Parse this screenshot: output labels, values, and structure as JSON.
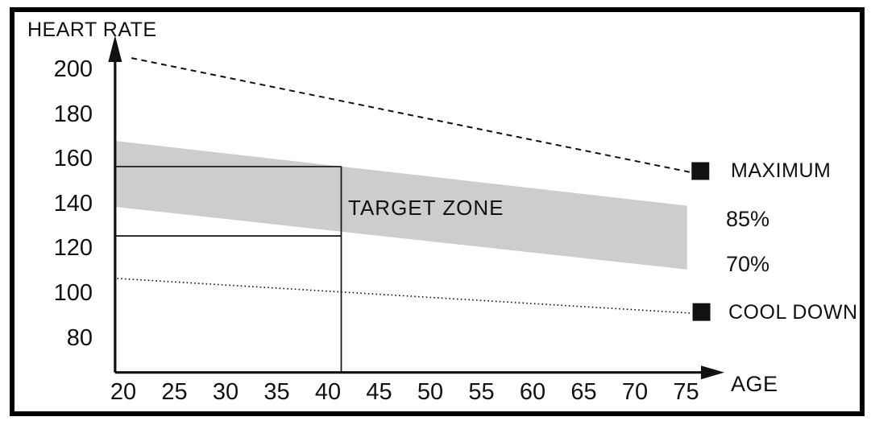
{
  "chart_data": {
    "type": "area",
    "title": "HEART RATE",
    "xlabel": "AGE",
    "ylabel": "HEART RATE",
    "x_ticks": [
      20,
      25,
      30,
      35,
      40,
      45,
      50,
      55,
      60,
      65,
      70,
      75
    ],
    "y_ticks": [
      200,
      180,
      160,
      140,
      120,
      100,
      80
    ],
    "xlim": [
      19.2,
      78.5
    ],
    "ylim": [
      64.5,
      212
    ],
    "grid": false,
    "legend_position": "right",
    "band": {
      "name": "TARGET ZONE",
      "x": [
        19.2,
        75.1
      ],
      "upper": [
        168,
        139
      ],
      "lower": [
        138.5,
        110.5
      ],
      "upper_label": "85%",
      "lower_label": "70%",
      "color": "#cdcdcd"
    },
    "series": [
      {
        "name": "MAXIMUM",
        "style": "dashed",
        "x": [
          20.8,
          75.4
        ],
        "y": [
          205,
          154
        ]
      },
      {
        "name": "COOL DOWN",
        "style": "dotted",
        "x": [
          19.4,
          75.5
        ],
        "y": [
          106.5,
          91
        ]
      }
    ],
    "markers": [
      {
        "name": "maximum-marker",
        "shape": "square",
        "x": 76.4,
        "y": 154.5
      },
      {
        "name": "cool-down-marker",
        "shape": "square",
        "x": 76.5,
        "y": 91.5
      }
    ],
    "guides": {
      "age": 41.3,
      "hr_upper": 156.5,
      "hr_lower": 125.5
    },
    "colors": {
      "line": "#111111",
      "band": "#cdcdcd",
      "background": "#ffffff",
      "frame_border": "#000000"
    }
  }
}
